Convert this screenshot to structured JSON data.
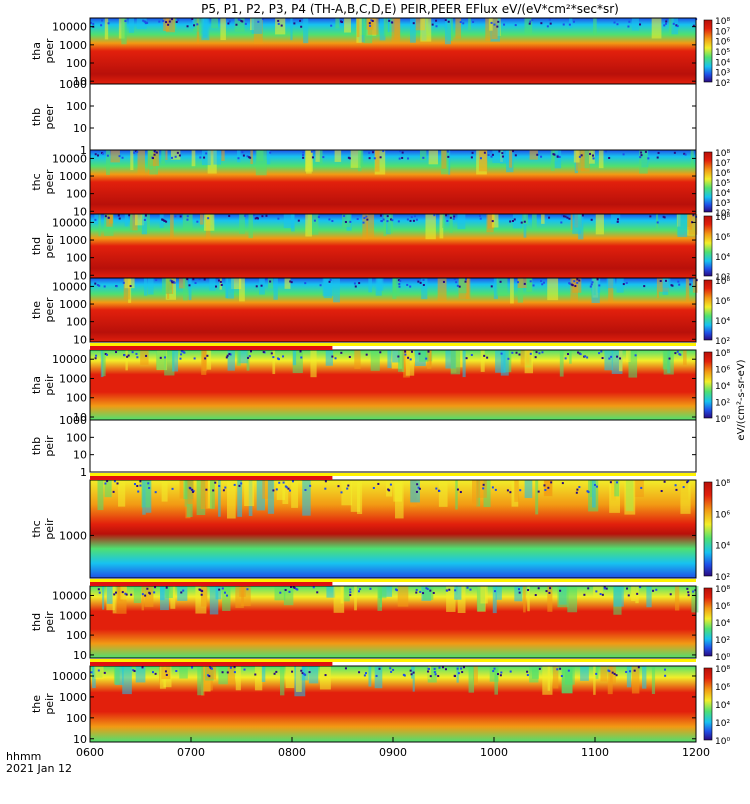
{
  "chart_data": {
    "type": "heatmap",
    "title": "P5, P1, P2, P3, P4 (TH-A,B,C,D,E) PEIR,PEER EFlux eV/(eV*cm²*sec*sr)",
    "x_axis": {
      "range": [
        "0600",
        "1200"
      ],
      "tick_labels": [
        "0600",
        "0700",
        "0800",
        "0900",
        "1000",
        "1100",
        "1200"
      ],
      "label_lines": [
        "hhmm",
        "2021 Jan 12"
      ]
    },
    "colorbar_units": "eV/(cm²-s-sr-eV)",
    "panels": [
      {
        "probe": "tha",
        "product": "peer",
        "has_data": true,
        "yticks": [
          "10",
          "100",
          "1000",
          "10000"
        ],
        "yrange": [
          7,
          30000
        ],
        "cbar": [
          "10²",
          "10³",
          "10⁴",
          "10⁵",
          "10⁶",
          "10⁷",
          "10⁸"
        ]
      },
      {
        "probe": "thb",
        "product": "peer",
        "has_data": false,
        "yticks": [
          "1",
          "10",
          "100",
          "1000"
        ],
        "yrange": [
          1,
          1000
        ],
        "cbar": []
      },
      {
        "probe": "thc",
        "product": "peer",
        "has_data": true,
        "yticks": [
          "10",
          "100",
          "1000",
          "10000"
        ],
        "yrange": [
          7,
          30000
        ],
        "cbar": [
          "10²",
          "10³",
          "10⁴",
          "10⁵",
          "10⁶",
          "10⁷",
          "10⁸"
        ]
      },
      {
        "probe": "thd",
        "product": "peer",
        "has_data": true,
        "yticks": [
          "10",
          "100",
          "1000",
          "10000"
        ],
        "yrange": [
          7,
          30000
        ],
        "cbar": [
          "10²",
          "10⁴",
          "10⁶",
          "10⁸"
        ]
      },
      {
        "probe": "the",
        "product": "peer",
        "has_data": true,
        "yticks": [
          "10",
          "100",
          "1000",
          "10000"
        ],
        "yrange": [
          7,
          30000
        ],
        "cbar": [
          "10²",
          "10⁴",
          "10⁶",
          "10⁸"
        ]
      },
      {
        "probe": "tha",
        "product": "peir",
        "has_data": true,
        "yticks": [
          "10",
          "100",
          "1000",
          "10000"
        ],
        "yrange": [
          7,
          30000
        ],
        "cbar": [
          "10⁰",
          "10²",
          "10⁴",
          "10⁶",
          "10⁸"
        ]
      },
      {
        "probe": "thb",
        "product": "peir",
        "has_data": false,
        "yticks": [
          "1",
          "10",
          "100",
          "1000"
        ],
        "yrange": [
          1,
          1000
        ],
        "cbar": []
      },
      {
        "probe": "thc",
        "product": "peir",
        "has_data": true,
        "yticks": [
          "1000"
        ],
        "yrange": [
          100,
          20000
        ],
        "cbar": [
          "10²",
          "10⁴",
          "10⁶",
          "10⁸"
        ]
      },
      {
        "probe": "thd",
        "product": "peir",
        "has_data": true,
        "yticks": [
          "10",
          "100",
          "1000",
          "10000"
        ],
        "yrange": [
          7,
          30000
        ],
        "cbar": [
          "10⁰",
          "10²",
          "10⁴",
          "10⁶",
          "10⁸"
        ]
      },
      {
        "probe": "the",
        "product": "peir",
        "has_data": true,
        "yticks": [
          "10",
          "100",
          "1000",
          "10000"
        ],
        "yrange": [
          7,
          30000
        ],
        "cbar": [
          "10⁰",
          "10²",
          "10⁴",
          "10⁶",
          "10⁸"
        ]
      }
    ],
    "colormap": [
      "#2a0a80",
      "#1f4fe8",
      "#17c2f0",
      "#4fe070",
      "#f2ee2a",
      "#f29a14",
      "#e2200c",
      "#b8100a"
    ],
    "mode_bars_color": [
      "#e01010",
      "#fff200"
    ]
  }
}
